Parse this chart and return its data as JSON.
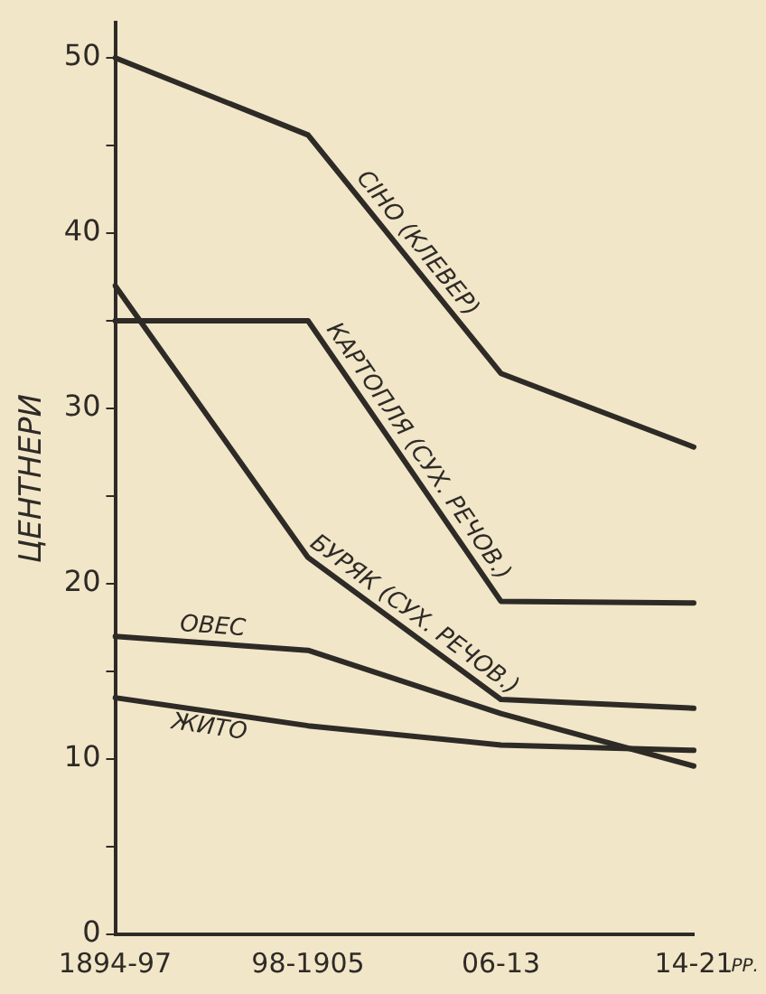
{
  "chart_data": {
    "type": "line",
    "ylabel": "ЦЕНТНЕРИ",
    "categories": [
      "1894-97",
      "98-1905",
      "06-13",
      "14-21"
    ],
    "series": [
      {
        "name": "СІНО (КЛЕВЕР)",
        "color": "#2e2a26",
        "values": [
          50,
          45.6,
          32,
          27.8
        ]
      },
      {
        "name": "КАРТОПЛЯ (СУХ. РЕЧОВ.)",
        "color": "#2e2a26",
        "values": [
          35,
          35,
          19,
          18.9
        ]
      },
      {
        "name": "БУРЯК (СУХ. РЕЧОВ.)",
        "color": "#2e2a26",
        "values": [
          37,
          21.5,
          13.4,
          12.9
        ]
      },
      {
        "name": "ОВЕС",
        "color": "#2e2a26",
        "values": [
          17,
          16.2,
          12.6,
          9.6
        ]
      },
      {
        "name": "ЖИТО",
        "color": "#2e2a26",
        "values": [
          13.5,
          11.9,
          10.8,
          10.5
        ]
      }
    ],
    "ylim": [
      0,
      52
    ],
    "yticks": [
      0,
      {
        "value": 5,
        "label": null
      },
      10,
      {
        "value": 15,
        "label": null
      },
      20,
      {
        "value": 25,
        "label": null
      },
      30,
      {
        "value": 35,
        "label": null
      },
      40,
      {
        "value": 45,
        "label": null
      },
      50
    ],
    "annotations": [
      "РР."
    ],
    "grid": false,
    "legend": false,
    "marker": "none",
    "line_style": "solid"
  }
}
